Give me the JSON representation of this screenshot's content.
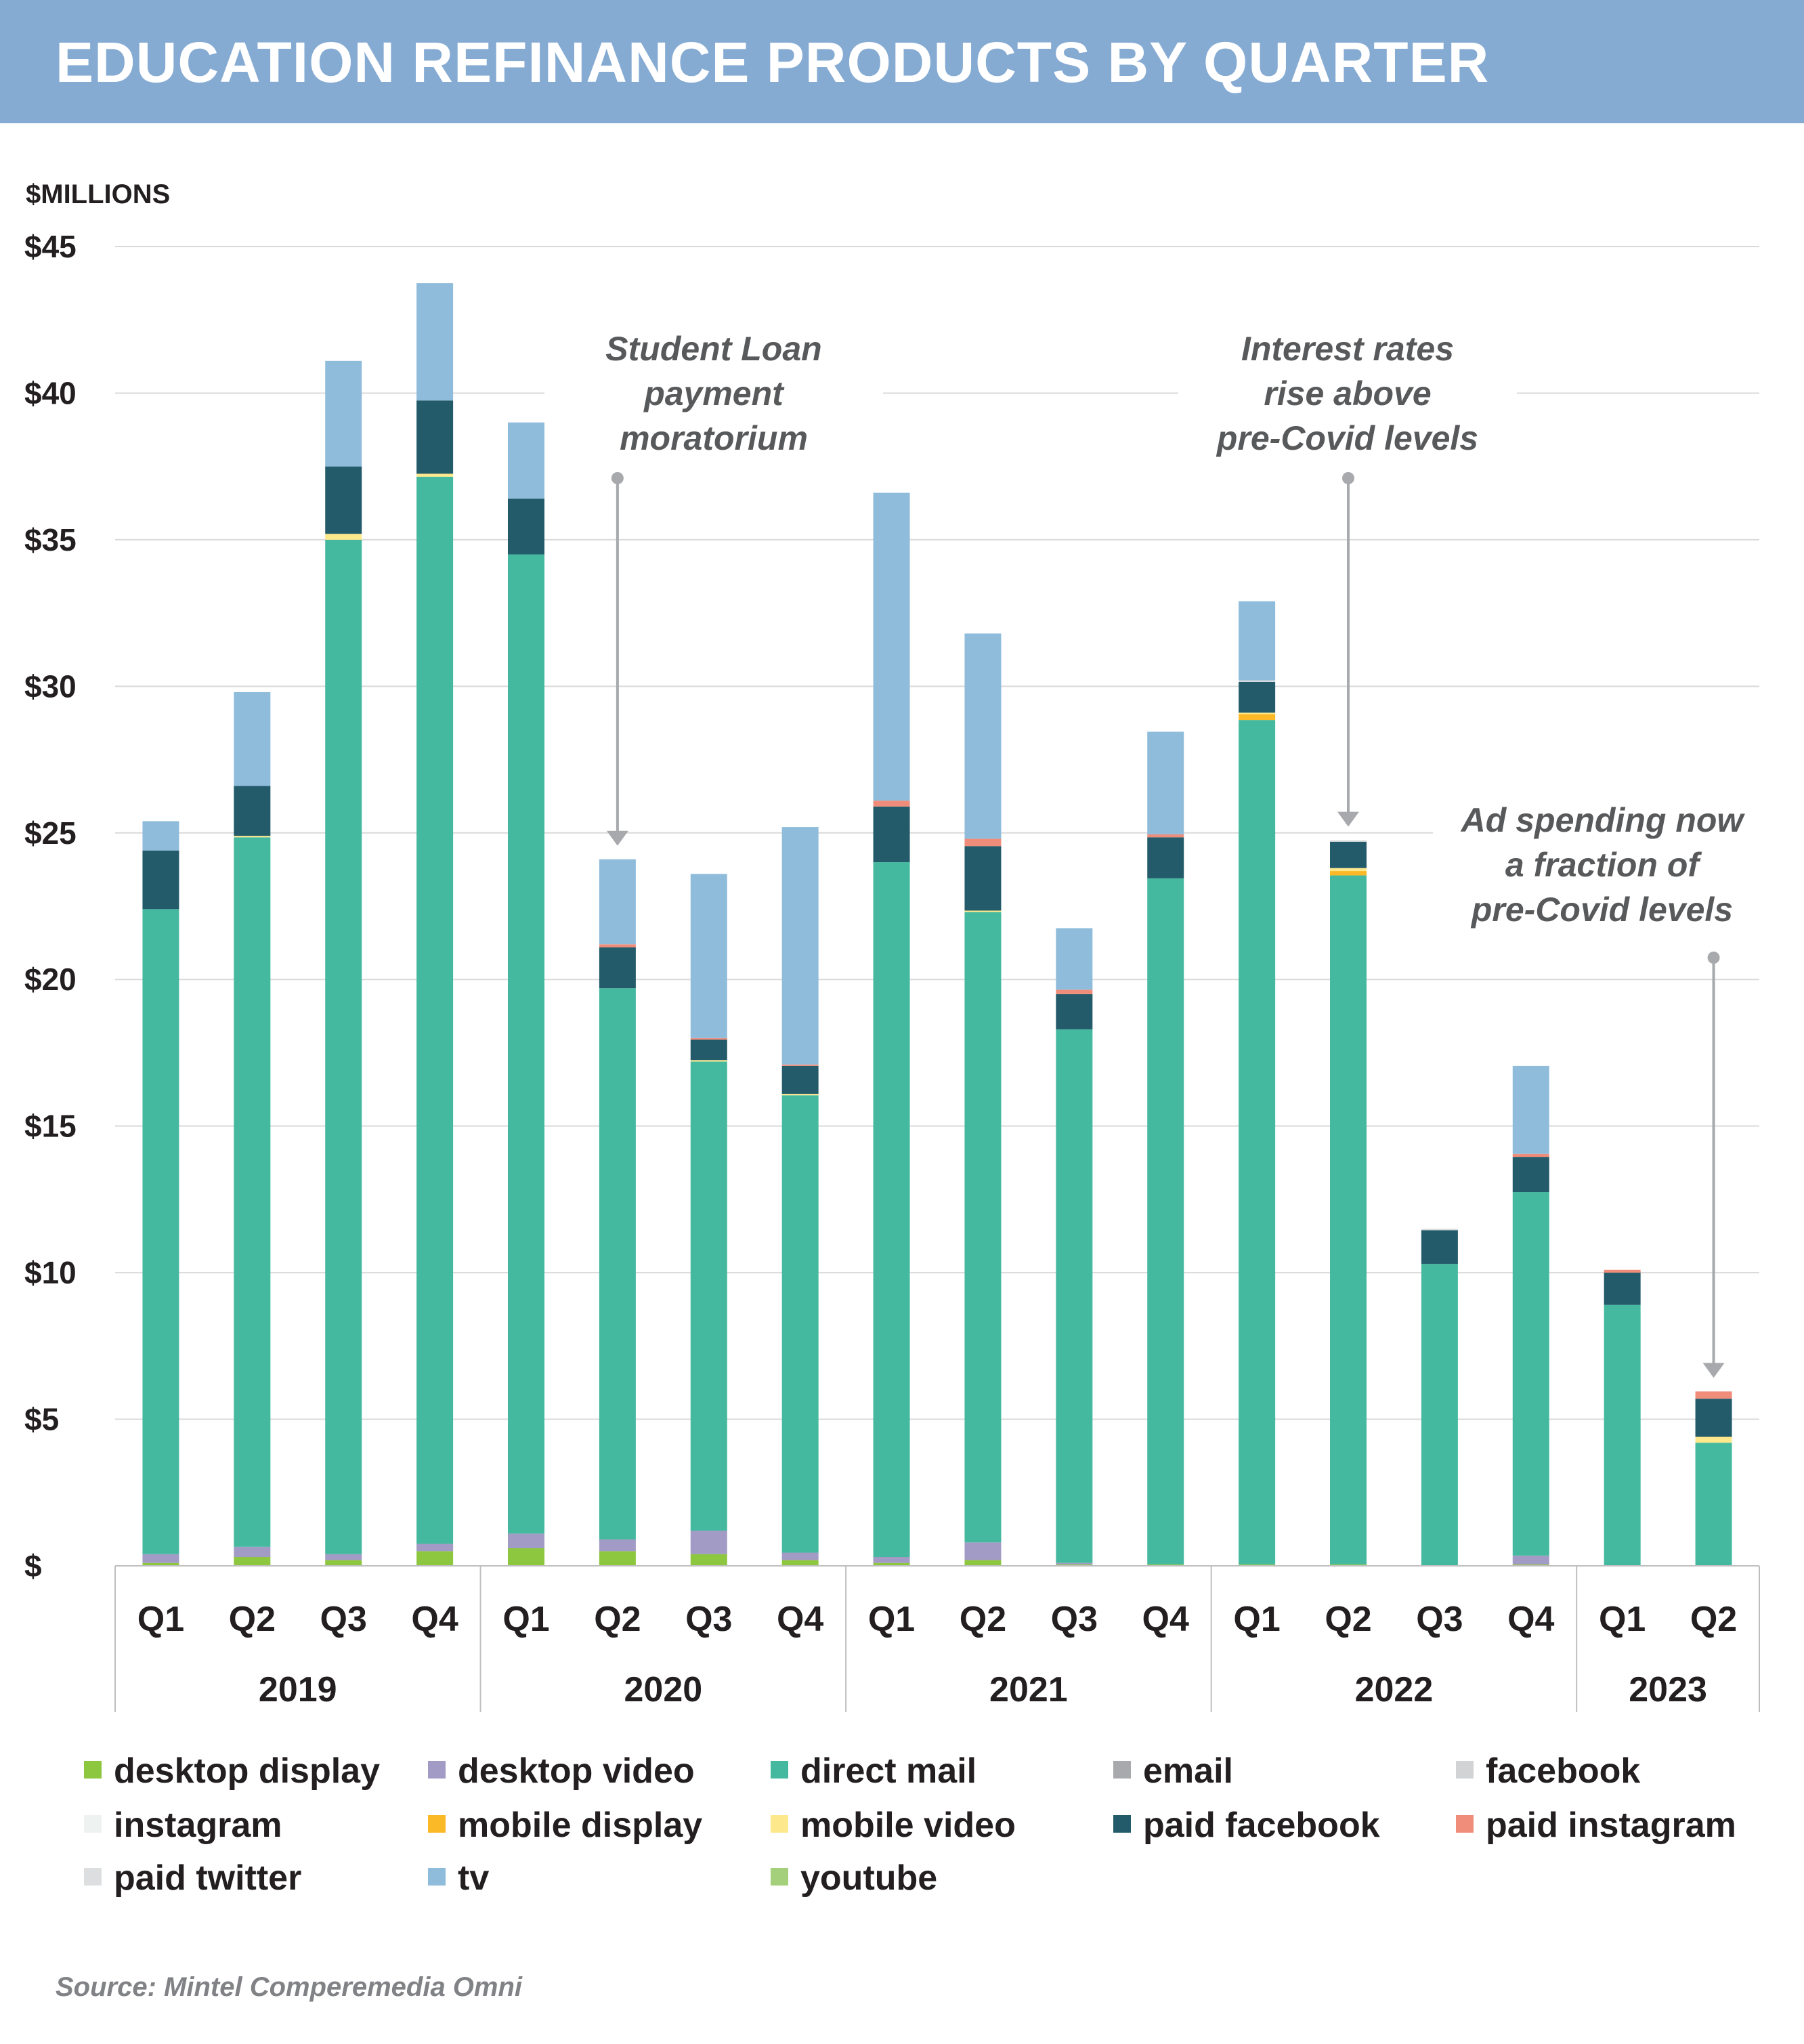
{
  "header": {
    "title": "EDUCATION REFINANCE PRODUCTS BY QUARTER"
  },
  "source": "Source: Mintel Comperemedia Omni",
  "chart_data": {
    "type": "bar",
    "stacked": true,
    "title": "EDUCATION REFINANCE PRODUCTS BY QUARTER",
    "ylabel": "$MILLIONS",
    "xlabel": "",
    "ylim": [
      0,
      45
    ],
    "yticks": [
      0,
      5,
      10,
      15,
      20,
      25,
      30,
      35,
      40,
      45
    ],
    "ytick_labels": [
      "$",
      "$5",
      "$10",
      "$15",
      "$20",
      "$25",
      "$30",
      "$35",
      "$40",
      "$45"
    ],
    "grid": true,
    "legend_position": "bottom",
    "categories": [
      "Q1",
      "Q2",
      "Q3",
      "Q4",
      "Q1",
      "Q2",
      "Q3",
      "Q4",
      "Q1",
      "Q2",
      "Q3",
      "Q4",
      "Q1",
      "Q2",
      "Q3",
      "Q4",
      "Q1",
      "Q2"
    ],
    "year_groups": [
      {
        "label": "2019",
        "start": 0,
        "count": 4
      },
      {
        "label": "2020",
        "start": 4,
        "count": 4
      },
      {
        "label": "2021",
        "start": 8,
        "count": 4
      },
      {
        "label": "2022",
        "start": 12,
        "count": 4
      },
      {
        "label": "2023",
        "start": 16,
        "count": 2
      }
    ],
    "series": [
      {
        "name": "desktop display",
        "color": "#8dc63f",
        "values": [
          0.1,
          0.3,
          0.2,
          0.5,
          0.6,
          0.5,
          0.4,
          0.2,
          0.1,
          0.2,
          0.05,
          0.05,
          0.05,
          0.05,
          0,
          0.05,
          0,
          0
        ]
      },
      {
        "name": "desktop video",
        "color": "#a29bc5",
        "values": [
          0.3,
          0.35,
          0.2,
          0.25,
          0.5,
          0.4,
          0.8,
          0.25,
          0.2,
          0.6,
          0.05,
          0,
          0,
          0,
          0,
          0.3,
          0,
          0
        ]
      },
      {
        "name": "direct mail",
        "color": "#45b99f",
        "values": [
          22,
          24.2,
          34.6,
          36.4,
          33.4,
          18.8,
          16,
          15.6,
          23.7,
          21.5,
          18.2,
          23.4,
          28.8,
          23.5,
          10.3,
          12.4,
          8.9,
          4.2
        ]
      },
      {
        "name": "email",
        "color": "#a7a9ac",
        "values": [
          0,
          0,
          0,
          0,
          0,
          0,
          0,
          0,
          0,
          0,
          0,
          0,
          0,
          0,
          0,
          0,
          0,
          0
        ]
      },
      {
        "name": "facebook",
        "color": "#d1d3d4",
        "values": [
          0,
          0,
          0,
          0,
          0,
          0,
          0,
          0,
          0,
          0,
          0,
          0,
          0,
          0,
          0,
          0,
          0,
          0
        ]
      },
      {
        "name": "instagram",
        "color": "#eef2f0",
        "values": [
          0,
          0,
          0,
          0,
          0,
          0,
          0,
          0,
          0,
          0,
          0,
          0,
          0,
          0,
          0,
          0,
          0,
          0
        ]
      },
      {
        "name": "mobile display",
        "color": "#fbb928",
        "values": [
          0,
          0,
          0,
          0,
          0,
          0,
          0,
          0,
          0,
          0,
          0,
          0,
          0.2,
          0.15,
          0,
          0,
          0,
          0
        ]
      },
      {
        "name": "mobile video",
        "color": "#fde88c",
        "values": [
          0,
          0.05,
          0.2,
          0.1,
          0,
          0,
          0.05,
          0.05,
          0,
          0.05,
          0,
          0,
          0.05,
          0.1,
          0,
          0,
          0,
          0.2
        ]
      },
      {
        "name": "paid facebook",
        "color": "#235b6a",
        "values": [
          2,
          1.7,
          2.3,
          2.5,
          1.9,
          1.4,
          0.7,
          0.95,
          1.9,
          2.2,
          1.2,
          1.4,
          1.05,
          0.9,
          1.15,
          1.2,
          1.1,
          1.3
        ]
      },
      {
        "name": "paid instagram",
        "color": "#f08d7a",
        "values": [
          0,
          0,
          0,
          0,
          0,
          0.1,
          0.05,
          0.05,
          0.2,
          0.25,
          0.15,
          0.1,
          0,
          0,
          0,
          0.1,
          0.1,
          0.25
        ]
      },
      {
        "name": "paid twitter",
        "color": "#dcdedf",
        "values": [
          0,
          0,
          0,
          0,
          0,
          0,
          0,
          0,
          0,
          0,
          0,
          0,
          0.05,
          0.05,
          0.05,
          0,
          0,
          0
        ]
      },
      {
        "name": "tv",
        "color": "#8fbcdb",
        "values": [
          1,
          3.2,
          3.6,
          4,
          2.6,
          2.9,
          5.6,
          8.1,
          10.5,
          7,
          2.1,
          3.5,
          2.7,
          0,
          0,
          3,
          0,
          0
        ]
      },
      {
        "name": "youtube",
        "color": "#a4d07b",
        "values": [
          0,
          0,
          0,
          0,
          0,
          0,
          0,
          0,
          0,
          0,
          0,
          0,
          0,
          0,
          0,
          0,
          0,
          0
        ]
      }
    ],
    "annotations": [
      {
        "lines": [
          "Student Loan",
          "payment",
          "moratorium"
        ],
        "category_index": 5
      },
      {
        "lines": [
          "Interest rates",
          "rise above",
          "pre-Covid levels"
        ],
        "category_index": 13
      },
      {
        "lines": [
          "Ad spending now",
          "a fraction of",
          "pre-Covid levels"
        ],
        "category_index": 17
      }
    ]
  }
}
